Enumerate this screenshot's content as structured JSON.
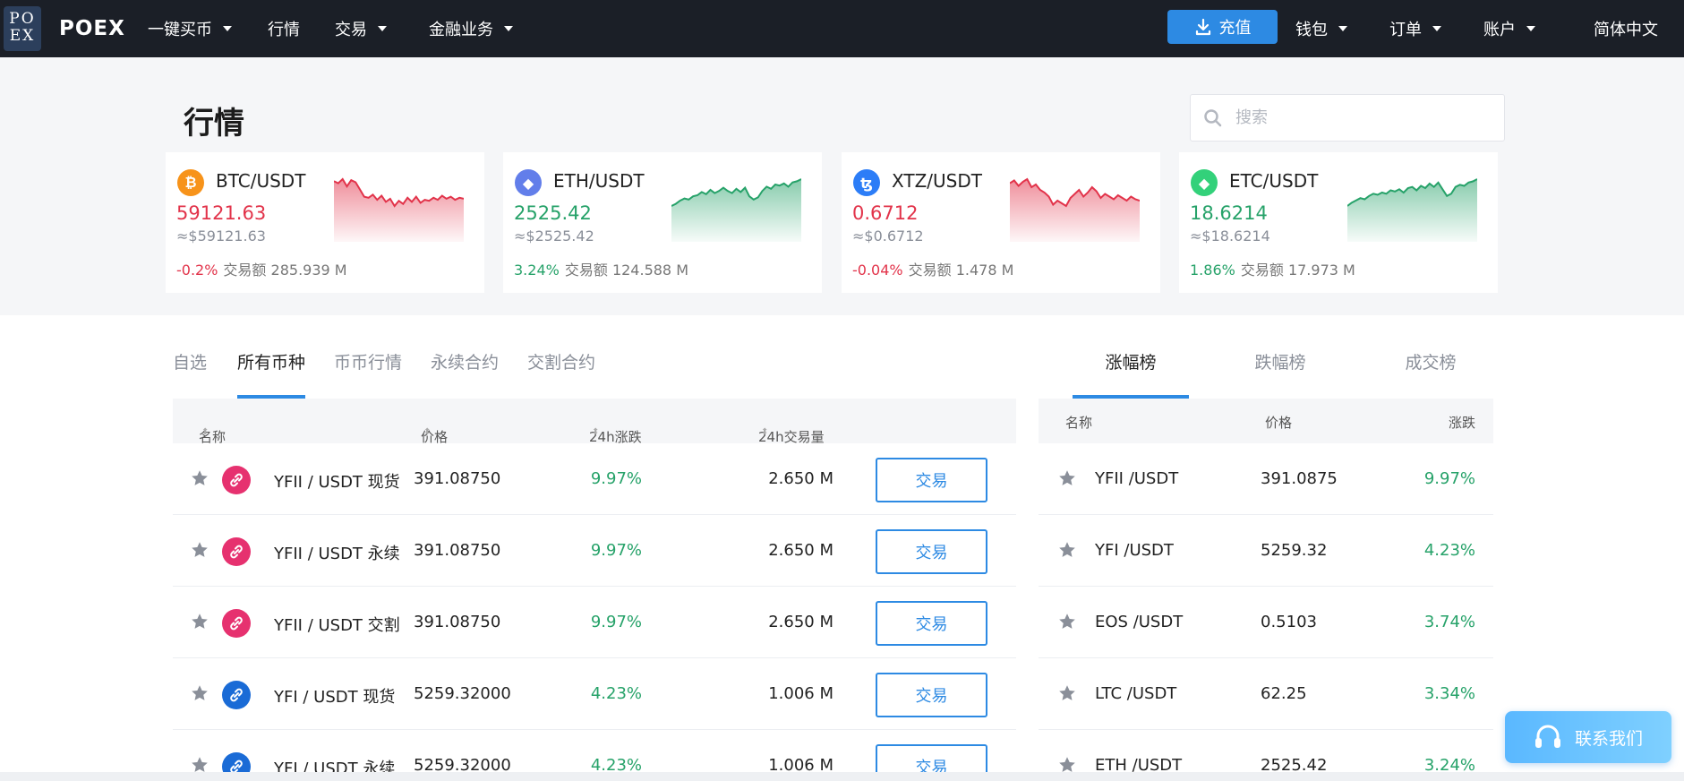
{
  "nav": {
    "logo_mark": "PO EX",
    "brand": "POEX",
    "items": [
      "一键买币",
      "行情",
      "交易",
      "金融业务"
    ],
    "recharge": "充值",
    "right_items": [
      "钱包",
      "订单",
      "账户"
    ],
    "language": "简体中文"
  },
  "hero": {
    "title": "行情",
    "search_placeholder": "搜索",
    "volume_label": "交易额",
    "cards": [
      {
        "pair": "BTC/USDT",
        "icon": "bitcoin-icon",
        "icon_glyph": "₿",
        "icon_color": "#f7931a",
        "price": "59121.63",
        "price_usd": "≈$59121.63",
        "change": "-0.2%",
        "volume": "285.939 M",
        "trend": "down",
        "spark": [
          62,
          60,
          64,
          57,
          63,
          61,
          54,
          47,
          46,
          49,
          44,
          48,
          42,
          45,
          38,
          43,
          40,
          46,
          42,
          47,
          41,
          44,
          43,
          46,
          44,
          48,
          45,
          47,
          44,
          46,
          45
        ]
      },
      {
        "pair": "ETH/USDT",
        "icon": "ethereum-icon",
        "icon_glyph": "◆",
        "icon_color": "#627eea",
        "price": "2525.42",
        "price_usd": "≈$2525.42",
        "change": "3.24%",
        "volume": "124.588 M",
        "trend": "up",
        "spark": [
          38,
          40,
          43,
          45,
          44,
          47,
          48,
          51,
          49,
          53,
          50,
          52,
          55,
          52,
          50,
          54,
          51,
          55,
          47,
          44,
          46,
          52,
          56,
          54,
          58,
          57,
          59,
          56,
          60,
          61,
          63
        ]
      },
      {
        "pair": "XTZ/USDT",
        "icon": "tezos-icon",
        "icon_glyph": "ꜩ",
        "icon_color": "#2c7df7",
        "price": "0.6712",
        "price_usd": "≈$0.6712",
        "change": "-0.04%",
        "volume": "1.478 M",
        "trend": "down",
        "spark": [
          60,
          62,
          58,
          61,
          63,
          57,
          59,
          55,
          53,
          50,
          44,
          47,
          45,
          43,
          49,
          52,
          55,
          50,
          53,
          57,
          54,
          49,
          52,
          50,
          48,
          51,
          49,
          47,
          50,
          48,
          47
        ]
      },
      {
        "pair": "ETC/USDT",
        "icon": "etc-icon",
        "icon_glyph": "◆",
        "icon_color": "#33d17a",
        "price": "18.6214",
        "price_usd": "≈$18.6214",
        "change": "1.86%",
        "volume": "17.973 M",
        "trend": "up",
        "spark": [
          40,
          43,
          45,
          47,
          46,
          49,
          51,
          50,
          52,
          51,
          54,
          53,
          55,
          52,
          56,
          57,
          54,
          58,
          56,
          60,
          57,
          61,
          55,
          49,
          51,
          57,
          59,
          58,
          61,
          62,
          64
        ]
      }
    ]
  },
  "market": {
    "tabs": [
      "自选",
      "所有币种",
      "币币行情",
      "永续合约",
      "交割合约"
    ],
    "active_tab": 1,
    "headers": {
      "name": "名称",
      "price": "价格",
      "change": "24h涨跌",
      "volume": "24h交易量"
    },
    "trade_label": "交易",
    "rows": [
      {
        "name": "YFII / USDT 现货",
        "price": "391.08750",
        "change": "9.97%",
        "volume": "2.650 M",
        "icon": "yfii-icon",
        "icon_color": "#e6316f"
      },
      {
        "name": "YFII / USDT 永续",
        "price": "391.08750",
        "change": "9.97%",
        "volume": "2.650 M",
        "icon": "yfii-icon",
        "icon_color": "#e6316f"
      },
      {
        "name": "YFII / USDT 交割",
        "price": "391.08750",
        "change": "9.97%",
        "volume": "2.650 M",
        "icon": "yfii-icon",
        "icon_color": "#e6316f"
      },
      {
        "name": "YFI / USDT 现货",
        "price": "5259.32000",
        "change": "4.23%",
        "volume": "1.006 M",
        "icon": "yfi-icon",
        "icon_color": "#1a6bd6"
      },
      {
        "name": "YFI / USDT 永续",
        "price": "5259.32000",
        "change": "4.23%",
        "volume": "1.006 M",
        "icon": "yfi-icon",
        "icon_color": "#1a6bd6"
      }
    ]
  },
  "ranking": {
    "tabs": [
      "涨幅榜",
      "跌幅榜",
      "成交榜"
    ],
    "active_tab": 0,
    "headers": {
      "name": "名称",
      "price": "价格",
      "change": "涨跌"
    },
    "rows": [
      {
        "name": "YFII /USDT",
        "price": "391.0875",
        "change": "9.97%"
      },
      {
        "name": "YFI /USDT",
        "price": "5259.32",
        "change": "4.23%"
      },
      {
        "name": "EOS /USDT",
        "price": "0.5103",
        "change": "3.74%"
      },
      {
        "name": "LTC /USDT",
        "price": "62.25",
        "change": "3.34%"
      },
      {
        "name": "ETH /USDT",
        "price": "2525.42",
        "change": "3.24%"
      }
    ]
  },
  "contact": "联系我们",
  "colors": {
    "up": "#26a269",
    "down": "#e2334a",
    "accent": "#2d8ae3"
  }
}
